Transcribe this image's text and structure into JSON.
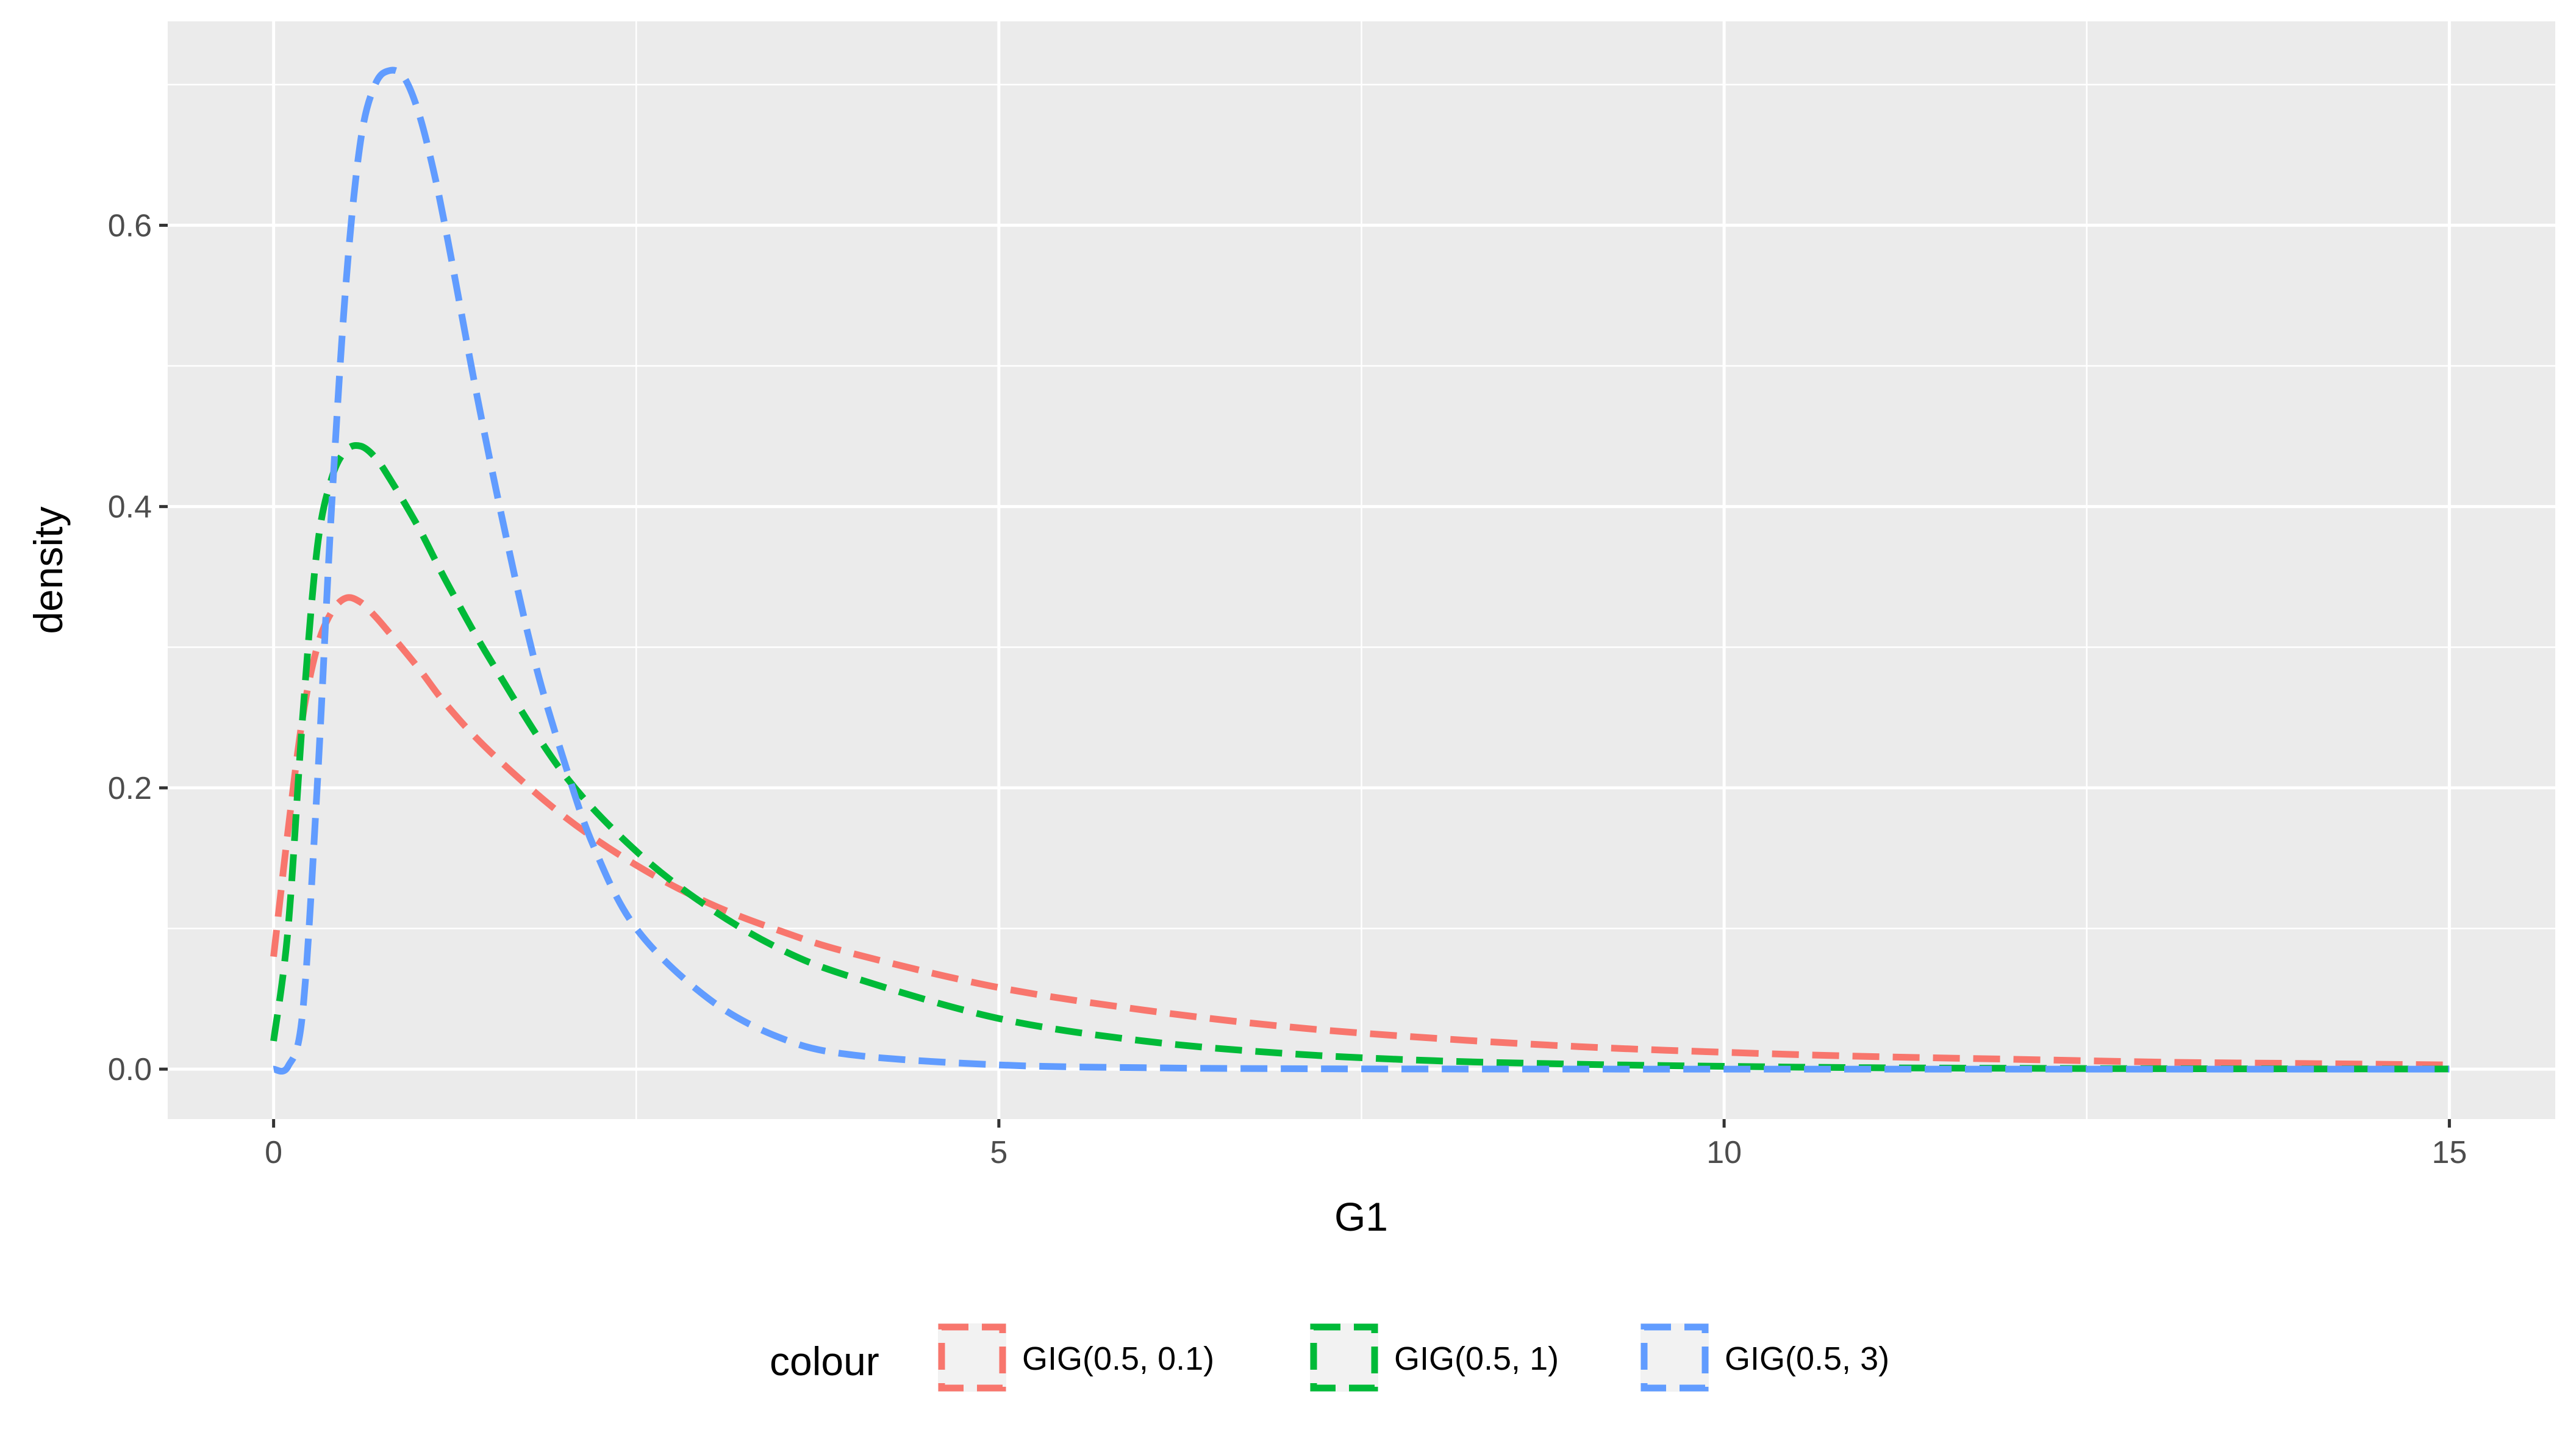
{
  "chart_data": {
    "type": "line",
    "xlabel": "G1",
    "ylabel": "density",
    "xlim": [
      -0.73,
      15.73
    ],
    "ylim": [
      -0.0355,
      0.745
    ],
    "x_ticks": [
      0,
      5,
      10,
      15
    ],
    "x_tick_labels": [
      "0",
      "5",
      "10",
      "15"
    ],
    "y_ticks": [
      0.0,
      0.2,
      0.4,
      0.6
    ],
    "y_tick_labels": [
      "0.0",
      "0.2",
      "0.4",
      "0.6"
    ],
    "grid": true,
    "legend": {
      "title": "colour",
      "position": "bottom"
    },
    "line_style": "dashed",
    "series": [
      {
        "name": "GIG(0.5, 0.1)",
        "color": "#F8766D",
        "x": [
          0.0,
          0.1,
          0.2,
          0.3,
          0.4,
          0.5,
          0.6,
          0.7,
          0.8,
          1.0,
          1.2,
          1.5,
          2.0,
          2.5,
          3.0,
          3.5,
          4.0,
          5.0,
          6.0,
          7.0,
          8.0,
          9.0,
          10.0,
          11.0,
          12.0,
          13.0,
          14.0,
          15.0
        ],
        "values": [
          0.08,
          0.17,
          0.25,
          0.3,
          0.325,
          0.335,
          0.332,
          0.322,
          0.31,
          0.285,
          0.258,
          0.225,
          0.18,
          0.145,
          0.118,
          0.098,
          0.082,
          0.058,
          0.042,
          0.03,
          0.022,
          0.016,
          0.012,
          0.009,
          0.007,
          0.005,
          0.004,
          0.003
        ]
      },
      {
        "name": "GIG(0.5, 1)",
        "color": "#00BA38",
        "x": [
          0.0,
          0.1,
          0.2,
          0.3,
          0.4,
          0.5,
          0.6,
          0.7,
          0.8,
          1.0,
          1.2,
          1.5,
          2.0,
          2.5,
          3.0,
          3.5,
          4.0,
          5.0,
          6.0,
          7.0,
          8.0,
          9.0,
          10.0,
          11.0,
          12.0,
          13.0,
          14.0,
          15.0
        ],
        "values": [
          0.02,
          0.1,
          0.25,
          0.37,
          0.42,
          0.44,
          0.443,
          0.435,
          0.42,
          0.385,
          0.345,
          0.29,
          0.21,
          0.155,
          0.115,
          0.085,
          0.065,
          0.036,
          0.02,
          0.011,
          0.006,
          0.0035,
          0.002,
          0.001,
          0.0006,
          0.0003,
          0.0002,
          0.0001
        ]
      },
      {
        "name": "GIG(0.5, 3)",
        "color": "#619CFF",
        "x": [
          0.0,
          0.1,
          0.2,
          0.3,
          0.4,
          0.5,
          0.6,
          0.7,
          0.8,
          0.9,
          1.0,
          1.1,
          1.2,
          1.4,
          1.6,
          1.8,
          2.0,
          2.2,
          2.5,
          3.0,
          3.5,
          4.0,
          5.0,
          6.0,
          7.0,
          8.0,
          10.0,
          12.0,
          15.0
        ],
        "values": [
          0.0,
          0.002,
          0.04,
          0.2,
          0.4,
          0.56,
          0.66,
          0.7,
          0.71,
          0.705,
          0.68,
          0.64,
          0.59,
          0.48,
          0.38,
          0.29,
          0.22,
          0.16,
          0.1,
          0.05,
          0.022,
          0.01,
          0.003,
          0.001,
          0.0003,
          0.0001,
          0.0,
          0.0,
          0.0
        ]
      }
    ]
  }
}
